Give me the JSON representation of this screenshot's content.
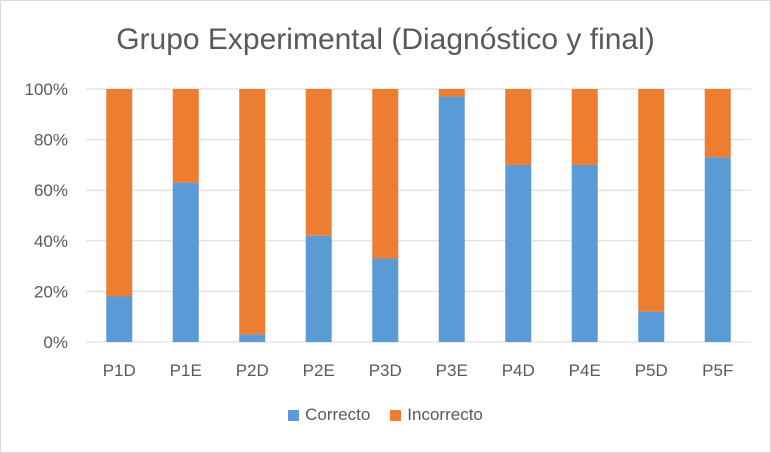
{
  "chart_data": {
    "type": "bar",
    "stacked": true,
    "percent": true,
    "title": "Grupo Experimental (Diagnóstico y final)",
    "categories": [
      "P1D",
      "P1E",
      "P2D",
      "P2E",
      "P3D",
      "P3E",
      "P4D",
      "P4E",
      "P5D",
      "P5F"
    ],
    "series": [
      {
        "name": "Correcto",
        "color": "#5b9bd5",
        "values": [
          18,
          63,
          3,
          42,
          33,
          97,
          70,
          70,
          12,
          73
        ]
      },
      {
        "name": "Incorrecto",
        "color": "#ed7d31",
        "values": [
          82,
          37,
          97,
          58,
          67,
          3,
          30,
          30,
          88,
          27
        ]
      }
    ],
    "yticks": [
      "0%",
      "20%",
      "40%",
      "60%",
      "80%",
      "100%"
    ],
    "ylim": [
      0,
      100
    ],
    "grid": true,
    "legend_position": "bottom"
  }
}
